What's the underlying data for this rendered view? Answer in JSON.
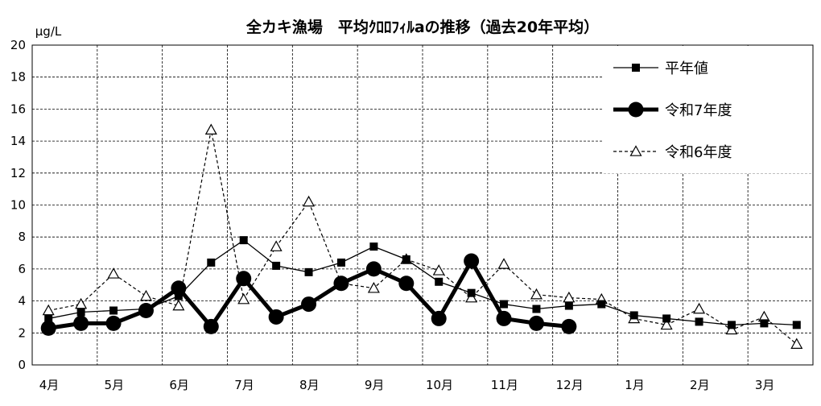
{
  "chart_data": {
    "type": "line",
    "title": "全カキ漁場　平均ｸﾛﾛﾌｨﾙaの推移（過去20年平均）",
    "ylabel": "μg/L",
    "xlabel": "",
    "ylim": [
      0,
      20
    ],
    "yticks": [
      0,
      2,
      4,
      6,
      8,
      10,
      12,
      14,
      16,
      18,
      20
    ],
    "grid": true,
    "legend_position": "top-right",
    "month_labels": [
      "4月",
      "5月",
      "6月",
      "7月",
      "8月",
      "9月",
      "10月",
      "11月",
      "12月",
      "1月",
      "2月",
      "3月"
    ],
    "x_unit": "half-month sampling (0 = early April)",
    "series": [
      {
        "name": "平年値",
        "style": "thin-solid-square",
        "color": "#000000",
        "x": [
          0,
          1,
          2,
          3,
          4,
          5,
          6,
          7,
          8,
          9,
          10,
          11,
          12,
          13,
          14,
          15,
          16,
          17,
          18,
          19,
          20,
          21,
          22,
          23
        ],
        "values": [
          2.9,
          3.3,
          3.4,
          3.5,
          4.3,
          6.4,
          7.8,
          6.2,
          5.8,
          6.4,
          7.4,
          6.6,
          5.2,
          4.5,
          3.8,
          3.5,
          3.7,
          3.8,
          3.1,
          2.9,
          2.7,
          2.5,
          2.6,
          2.5
        ]
      },
      {
        "name": "令和7年度",
        "style": "thick-solid-circle",
        "color": "#000000",
        "x": [
          0,
          1,
          2,
          3,
          4,
          5,
          6,
          7,
          8,
          9,
          10,
          11,
          12,
          13,
          14,
          15,
          16
        ],
        "values": [
          2.3,
          2.6,
          2.6,
          3.4,
          4.8,
          2.4,
          5.4,
          3.0,
          3.8,
          5.1,
          6.0,
          5.1,
          2.9,
          6.5,
          2.9,
          2.6,
          2.4
        ]
      },
      {
        "name": "令和6年度",
        "style": "dashed-open-triangle",
        "color": "#000000",
        "x": [
          0,
          1,
          2,
          3,
          4,
          5,
          6,
          7,
          8,
          9,
          10,
          11,
          12,
          13,
          14,
          15,
          16,
          17,
          18,
          19,
          20,
          21,
          22,
          23
        ],
        "values": [
          3.4,
          3.8,
          5.7,
          4.3,
          3.7,
          14.7,
          4.1,
          7.4,
          10.2,
          5.1,
          4.8,
          6.6,
          5.9,
          4.2,
          6.3,
          4.4,
          4.2,
          4.1,
          2.9,
          2.5,
          3.5,
          2.2,
          3.0,
          1.3
        ]
      }
    ]
  }
}
